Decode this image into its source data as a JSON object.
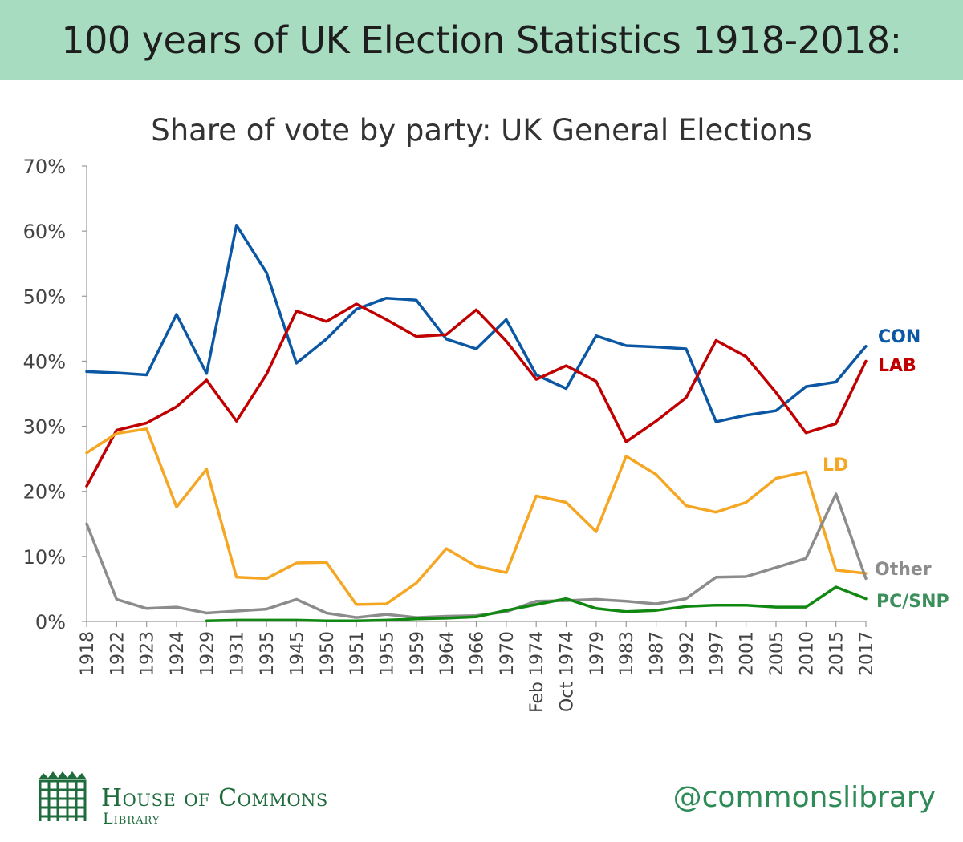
{
  "banner": {
    "title": "100 years of UK Election Statistics 1918-2018:"
  },
  "chart_data": {
    "type": "line",
    "title": "Share of vote by party: UK General Elections",
    "xlabel": "",
    "ylabel": "",
    "ylim": [
      0,
      70
    ],
    "y_ticks": [
      "0%",
      "10%",
      "20%",
      "30%",
      "40%",
      "50%",
      "60%",
      "70%"
    ],
    "categories": [
      "1918",
      "1922",
      "1923",
      "1924",
      "1929",
      "1931",
      "1935",
      "1945",
      "1950",
      "1951",
      "1955",
      "1959",
      "1964",
      "1966",
      "1970",
      "Feb 1974",
      "Oct 1974",
      "1979",
      "1983",
      "1987",
      "1992",
      "1997",
      "2001",
      "2005",
      "2010",
      "2015",
      "2017"
    ],
    "grid": false,
    "series": [
      {
        "name": "CON",
        "color": "#0b57a4",
        "values": [
          38.4,
          38.2,
          37.9,
          47.2,
          38.1,
          60.9,
          53.6,
          39.7,
          43.4,
          48.0,
          49.7,
          49.4,
          43.4,
          41.9,
          46.4,
          37.9,
          35.8,
          43.9,
          42.4,
          42.2,
          41.9,
          30.7,
          31.7,
          32.4,
          36.1,
          36.8,
          42.3
        ]
      },
      {
        "name": "LAB",
        "color": "#c00000",
        "values": [
          20.8,
          29.4,
          30.5,
          33.0,
          37.1,
          30.8,
          38.0,
          47.7,
          46.1,
          48.8,
          46.4,
          43.8,
          44.1,
          47.9,
          43.1,
          37.2,
          39.3,
          36.9,
          27.6,
          30.8,
          34.4,
          43.2,
          40.7,
          35.2,
          29.0,
          30.4,
          40.0
        ]
      },
      {
        "name": "LD",
        "color": "#f5a623",
        "values": [
          25.9,
          28.9,
          29.6,
          17.6,
          23.4,
          6.8,
          6.6,
          9.0,
          9.1,
          2.6,
          2.7,
          5.9,
          11.2,
          8.5,
          7.5,
          19.3,
          18.3,
          13.8,
          25.4,
          22.6,
          17.8,
          16.8,
          18.3,
          22.0,
          23.0,
          7.9,
          7.4
        ]
      },
      {
        "name": "Other",
        "color": "#8c8c8c",
        "values": [
          15.0,
          3.4,
          2.0,
          2.2,
          1.3,
          1.6,
          1.9,
          3.4,
          1.3,
          0.6,
          1.1,
          0.6,
          0.8,
          0.9,
          1.5,
          3.1,
          3.2,
          3.4,
          3.1,
          2.7,
          3.5,
          6.8,
          6.9,
          8.3,
          9.7,
          19.6,
          6.6
        ]
      },
      {
        "name": "PC/SNP",
        "color": "#118811",
        "values": [
          null,
          null,
          null,
          null,
          0.1,
          0.2,
          0.2,
          0.2,
          0.1,
          0.1,
          0.2,
          0.4,
          0.5,
          0.7,
          1.7,
          2.6,
          3.5,
          2.0,
          1.5,
          1.7,
          2.3,
          2.5,
          2.5,
          2.2,
          2.2,
          5.3,
          3.5
        ]
      }
    ]
  },
  "footer": {
    "org_main": "House of Commons",
    "org_sub": "Library",
    "handle": "@commonslibrary"
  }
}
